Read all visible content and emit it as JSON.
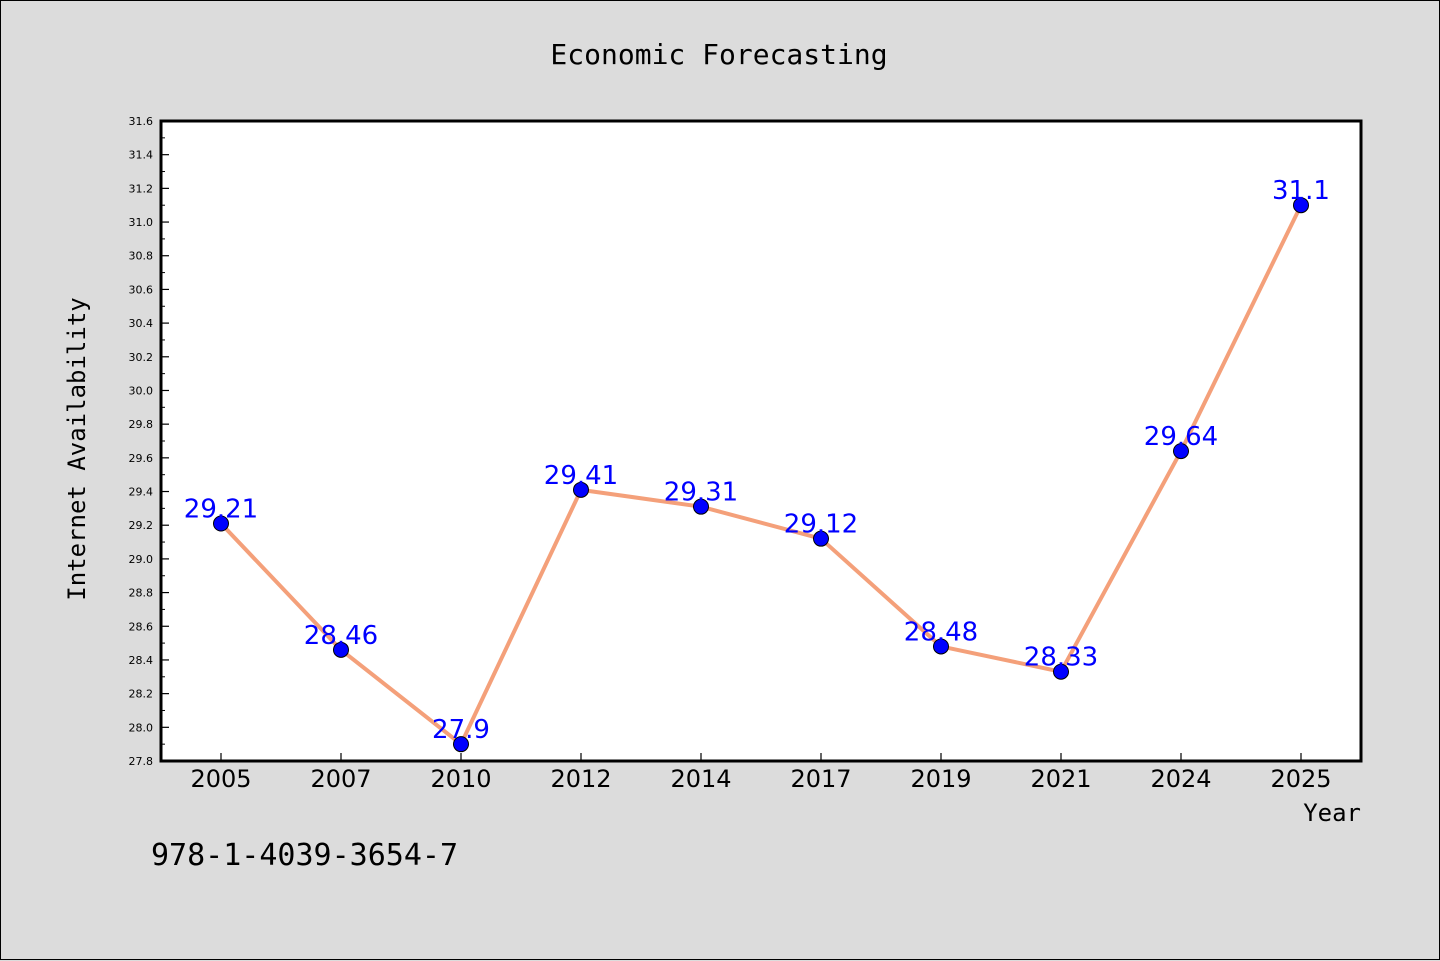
{
  "chart_data": {
    "type": "line",
    "title": "Economic Forecasting",
    "xlabel": "Year",
    "ylabel": "Internet Availability",
    "categories": [
      "2005",
      "2007",
      "2010",
      "2012",
      "2014",
      "2017",
      "2019",
      "2021",
      "2024",
      "2025"
    ],
    "series": [
      {
        "values": [
          29.21,
          28.46,
          27.9,
          29.41,
          29.31,
          29.12,
          28.48,
          28.33,
          29.64,
          31.1
        ]
      }
    ],
    "data_labels": [
      "29.21",
      "28.46",
      "27.9",
      "29.41",
      "29.31",
      "29.12",
      "28.48",
      "28.33",
      "29.64",
      "31.1"
    ],
    "ylim": [
      27.8,
      31.6
    ],
    "yticks": [
      "27.8",
      "28.0",
      "28.2",
      "28.4",
      "28.6",
      "28.8",
      "29.0",
      "29.2",
      "29.4",
      "29.6",
      "29.8",
      "30.0",
      "30.2",
      "30.4",
      "30.6",
      "30.8",
      "31.0",
      "31.2",
      "31.4",
      "31.6"
    ],
    "grid": false,
    "legend": "none",
    "colors": {
      "line": "#f4a07a",
      "marker": "#0000ff",
      "data_label": "#0000ff",
      "background": "#dcdcdc",
      "plot_background": "#ffffff"
    }
  },
  "footer_text": "978-1-4039-3654-7"
}
